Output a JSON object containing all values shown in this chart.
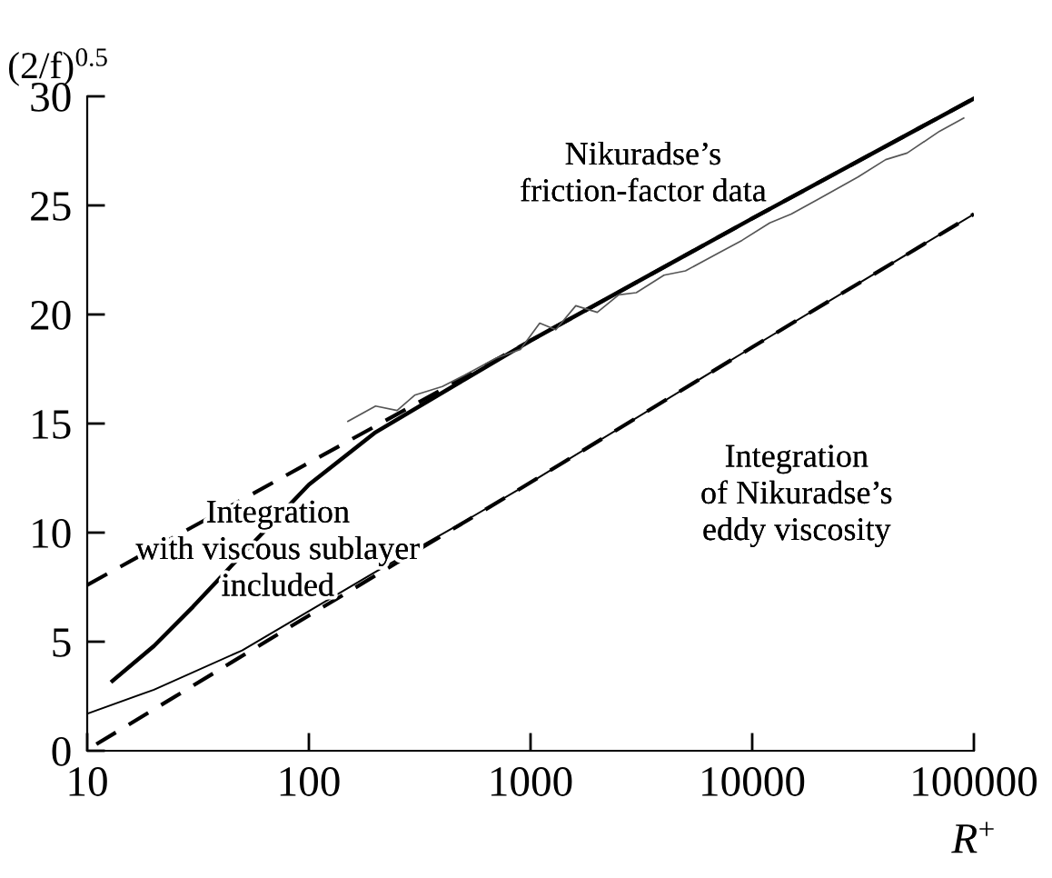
{
  "chart_data": {
    "type": "line",
    "ylabel": "(2/f)$^{0.5}$",
    "xlabel": "R$^{+}$",
    "log": "x",
    "grid": false,
    "legend": false,
    "xlim": [
      10,
      100000
    ],
    "ylim": [
      0,
      30
    ],
    "xticks": [
      10,
      100,
      1000,
      10000,
      100000
    ],
    "yticks": [
      0,
      5,
      10,
      15,
      20,
      25,
      30
    ],
    "series": [
      {
        "color": "#000000",
        "line_style": "dashed",
        "x": [
          10,
          100,
          1000,
          10000,
          100000
        ],
        "values": [
          7.6,
          13.2,
          18.8,
          24.4,
          29.9
        ]
      },
      {
        "color": "#000000",
        "line_style": "dashed",
        "x": [
          11,
          100,
          1000,
          10000,
          100000
        ],
        "values": [
          0.3,
          6.2,
          12.3,
          18.5,
          24.6
        ]
      },
      {
        "color": "#000000",
        "line_style": "solid",
        "x": [
          10,
          20,
          50,
          100,
          200,
          500,
          1000,
          10000,
          100000
        ],
        "values": [
          1.7,
          2.8,
          4.6,
          6.4,
          8.2,
          10.5,
          12.3,
          18.5,
          24.6
        ]
      },
      {
        "color": "#000000",
        "line_style": "solid",
        "x": [
          13,
          20,
          30,
          50,
          100,
          200,
          500,
          1000,
          10000,
          100000
        ],
        "values": [
          3.2,
          4.8,
          6.6,
          9.0,
          12.2,
          14.6,
          17.0,
          18.8,
          24.4,
          29.9
        ]
      },
      {
        "color": "#555555",
        "line_style": "solid",
        "x": [
          150,
          200,
          250,
          300,
          400,
          500,
          700,
          900,
          1100,
          1300,
          1600,
          2000,
          2500,
          3000,
          4000,
          5000,
          7000,
          9000,
          12000,
          15000,
          20000,
          30000,
          40000,
          50000,
          70000,
          90000
        ],
        "values": [
          15.1,
          15.8,
          15.6,
          16.3,
          16.7,
          17.2,
          18.0,
          18.4,
          19.6,
          19.3,
          20.4,
          20.1,
          20.9,
          21.0,
          21.8,
          22.0,
          22.8,
          23.4,
          24.2,
          24.6,
          25.3,
          26.3,
          27.1,
          27.4,
          28.4,
          29.0
        ]
      }
    ],
    "annotations": [
      "Nikuradse’s\nfriction-factor data",
      "Integration\nwith viscous sublayer\nincluded",
      "Integration\nof Nikuradse’s\neddy viscosity"
    ]
  }
}
